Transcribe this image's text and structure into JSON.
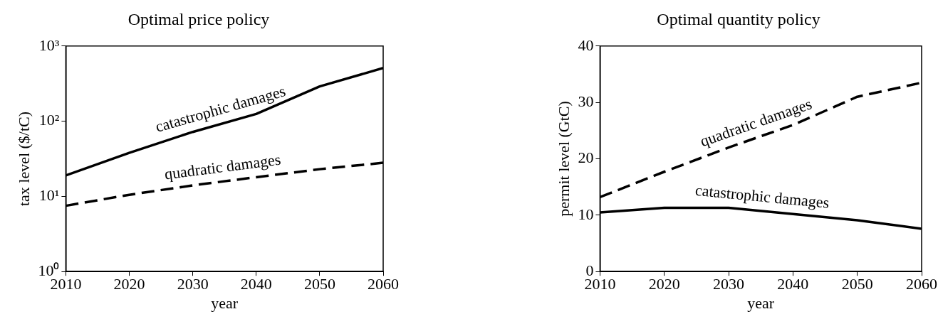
{
  "chart_data": [
    {
      "type": "line",
      "title": "Optimal price policy",
      "xlabel": "year",
      "ylabel": "tax level ($/tC)",
      "log": "y",
      "grid": false,
      "legend": false,
      "marker": "none",
      "x": [
        2010,
        2020,
        2030,
        2040,
        2050,
        2060
      ],
      "xlim": [
        2010,
        2060
      ],
      "xticks": [
        2010,
        2020,
        2030,
        2040,
        2050,
        2060
      ],
      "ylim": [
        1,
        1000
      ],
      "yticks": [
        {
          "value": 1,
          "label": "10⁰"
        },
        {
          "value": 10,
          "label": "10¹"
        },
        {
          "value": 100,
          "label": "10²"
        },
        {
          "value": 1000,
          "label": "10³"
        }
      ],
      "series": [
        {
          "name": "catastrophic damages",
          "color": "#000000",
          "line_style": "solid",
          "values": [
            19,
            38,
            72,
            125,
            290,
            510
          ]
        },
        {
          "name": "quadratic damages",
          "color": "#000000",
          "line_style": "dashed",
          "values": [
            7.5,
            10.5,
            14,
            18,
            23,
            28
          ]
        }
      ]
    },
    {
      "type": "line",
      "title": "Optimal quantity policy",
      "xlabel": "year",
      "ylabel": "permit level (GtC)",
      "grid": false,
      "legend": false,
      "marker": "none",
      "x": [
        2010,
        2020,
        2030,
        2040,
        2050,
        2060
      ],
      "xlim": [
        2010,
        2060
      ],
      "xticks": [
        2010,
        2020,
        2030,
        2040,
        2050,
        2060
      ],
      "ylim": [
        0,
        40
      ],
      "yticks": [
        0,
        10,
        20,
        30,
        40
      ],
      "series": [
        {
          "name": "quadratic damages",
          "color": "#000000",
          "line_style": "dashed",
          "values": [
            13.2,
            17.7,
            22,
            26,
            31,
            33.5
          ]
        },
        {
          "name": "catastrophic damages",
          "color": "#000000",
          "line_style": "solid",
          "values": [
            10.5,
            11.3,
            11.3,
            10.2,
            9.1,
            7.6
          ]
        }
      ]
    }
  ]
}
